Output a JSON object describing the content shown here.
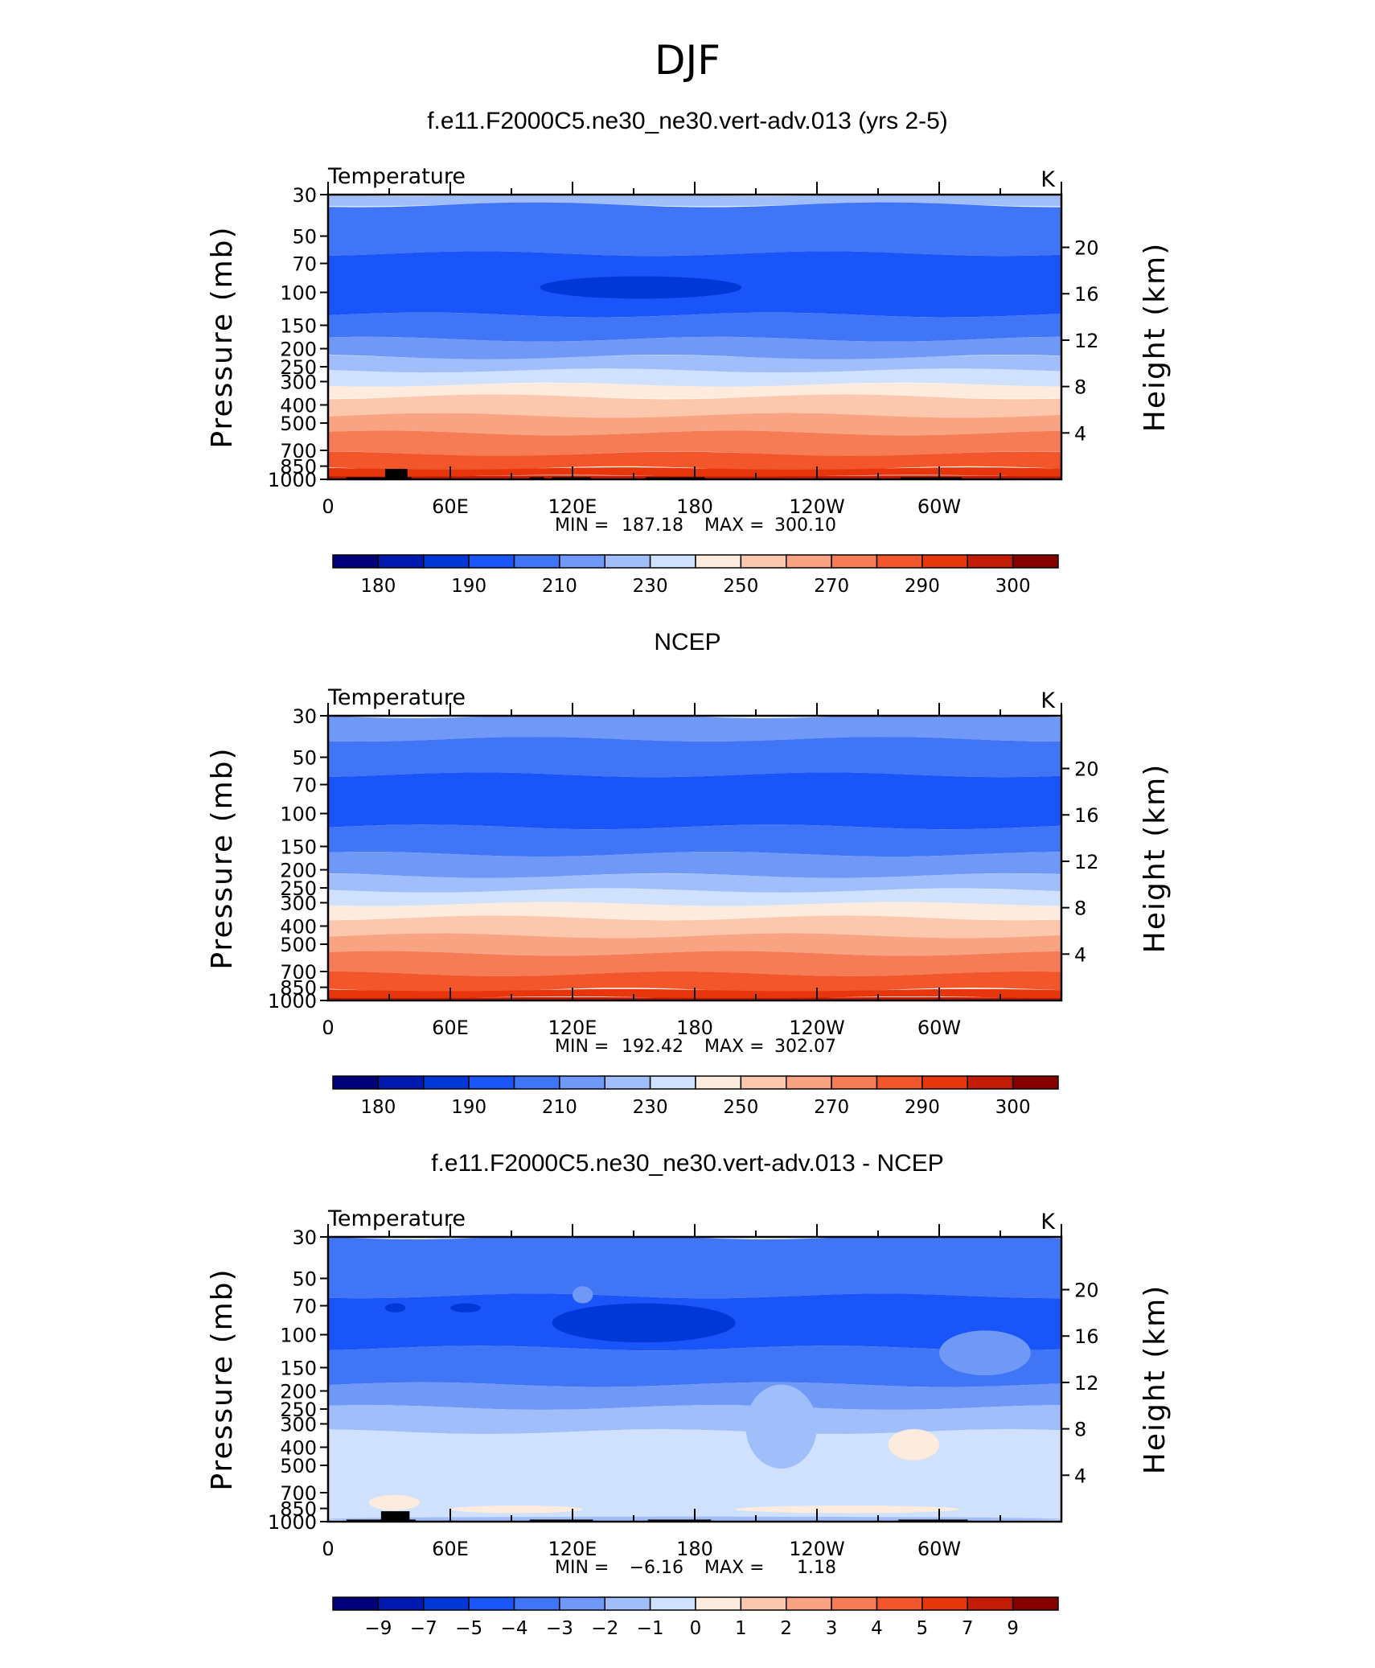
{
  "figure_title": "DJF",
  "colors": {
    "temperature_levels": [
      "#00007b",
      "#001ab0",
      "#0038d8",
      "#1a55fa",
      "#4076f5",
      "#6f98f7",
      "#a0befa",
      "#cfe1fc",
      "#fdecde",
      "#fbc8ad",
      "#f8a381",
      "#f57c55",
      "#f2562a",
      "#e8360c",
      "#c21c04",
      "#870000"
    ],
    "difference_levels": [
      "#00007b",
      "#001ab0",
      "#0038d8",
      "#1a55fa",
      "#4076f5",
      "#6f98f7",
      "#a0befa",
      "#cfe1fc",
      "#fdecde",
      "#fbc8ad",
      "#f8a381",
      "#f57c55",
      "#f2562a",
      "#e8360c",
      "#c21c04",
      "#870000"
    ]
  },
  "chart_data": [
    {
      "type": "heatmap",
      "title": "f.e11.F2000C5.ne30_ne30.vert-adv.013 (yrs 2-5)",
      "left_label": "Temperature",
      "right_label": "K",
      "ylabel": "Pressure (mb)",
      "y2label": "Height (km)",
      "pressure_ticks": [
        "30",
        "50",
        "70",
        "100",
        "150",
        "200",
        "250",
        "300",
        "400",
        "500",
        "700",
        "850",
        "1000"
      ],
      "height_ticks": [
        "20",
        "16",
        "12",
        "8",
        "4"
      ],
      "x_ticks": [
        "0",
        "60E",
        "120E",
        "180",
        "120W",
        "60W"
      ],
      "ylim": [
        1000,
        30
      ],
      "xlim": [
        0,
        360
      ],
      "min_label": "MIN =",
      "min_value": "187.18",
      "max_label": "MAX =",
      "max_value": "300.10",
      "colorbar_labels": [
        "180",
        "190",
        "210",
        "230",
        "250",
        "270",
        "290",
        "300"
      ],
      "bands": [
        {
          "top": 30,
          "bottom": 34,
          "color_index": 6
        },
        {
          "top": 34,
          "bottom": 62,
          "color_index": 4
        },
        {
          "top": 62,
          "bottom": 132,
          "color_index": 3
        },
        {
          "top": 132,
          "bottom": 178,
          "color_index": 4
        },
        {
          "top": 178,
          "bottom": 222,
          "color_index": 5
        },
        {
          "top": 222,
          "bottom": 262,
          "color_index": 6
        },
        {
          "top": 262,
          "bottom": 312,
          "color_index": 7
        },
        {
          "top": 312,
          "bottom": 362,
          "color_index": 8
        },
        {
          "top": 362,
          "bottom": 455,
          "color_index": 9
        },
        {
          "top": 455,
          "bottom": 565,
          "color_index": 10
        },
        {
          "top": 565,
          "bottom": 730,
          "color_index": 11
        },
        {
          "top": 730,
          "bottom": 875,
          "color_index": 12
        },
        {
          "top": 875,
          "bottom": 960,
          "color_index": 13
        },
        {
          "top": 960,
          "bottom": 1000,
          "color_index": 14
        }
      ],
      "blobs": [
        {
          "lon_start": 104,
          "lon_end": 203,
          "p_top": 82,
          "p_bottom": 108,
          "color_index": 2
        }
      ],
      "topography": [
        {
          "lon_start": 9,
          "lon_end": 41,
          "p_top": 975
        },
        {
          "lon_start": 28,
          "lon_end": 39,
          "p_top": 880
        },
        {
          "lon_start": 99,
          "lon_end": 106,
          "p_top": 975
        },
        {
          "lon_start": 110,
          "lon_end": 129,
          "p_top": 975
        },
        {
          "lon_start": 156,
          "lon_end": 185,
          "p_top": 975
        },
        {
          "lon_start": 281,
          "lon_end": 311,
          "p_top": 975
        }
      ]
    },
    {
      "type": "heatmap",
      "title": "NCEP",
      "left_label": "Temperature",
      "right_label": "K",
      "ylabel": "Pressure (mb)",
      "y2label": "Height (km)",
      "pressure_ticks": [
        "30",
        "50",
        "70",
        "100",
        "150",
        "200",
        "250",
        "300",
        "400",
        "500",
        "700",
        "850",
        "1000"
      ],
      "height_ticks": [
        "20",
        "16",
        "12",
        "8",
        "4"
      ],
      "x_ticks": [
        "0",
        "60E",
        "120E",
        "180",
        "120W",
        "60W"
      ],
      "ylim": [
        1000,
        30
      ],
      "xlim": [
        0,
        360
      ],
      "min_label": "MIN =",
      "min_value": "192.42",
      "max_label": "MAX =",
      "max_value": "302.07",
      "colorbar_labels": [
        "180",
        "190",
        "210",
        "230",
        "250",
        "270",
        "290",
        "300"
      ],
      "bands": [
        {
          "top": 30,
          "bottom": 40,
          "color_index": 5
        },
        {
          "top": 40,
          "bottom": 62,
          "color_index": 4
        },
        {
          "top": 62,
          "bottom": 118,
          "color_index": 3
        },
        {
          "top": 118,
          "bottom": 165,
          "color_index": 4
        },
        {
          "top": 165,
          "bottom": 215,
          "color_index": 5
        },
        {
          "top": 215,
          "bottom": 258,
          "color_index": 6
        },
        {
          "top": 258,
          "bottom": 305,
          "color_index": 7
        },
        {
          "top": 305,
          "bottom": 362,
          "color_index": 8
        },
        {
          "top": 362,
          "bottom": 450,
          "color_index": 9
        },
        {
          "top": 450,
          "bottom": 560,
          "color_index": 10
        },
        {
          "top": 560,
          "bottom": 720,
          "color_index": 11
        },
        {
          "top": 720,
          "bottom": 880,
          "color_index": 12
        },
        {
          "top": 880,
          "bottom": 965,
          "color_index": 13
        },
        {
          "top": 965,
          "bottom": 1000,
          "color_index": 14
        }
      ],
      "blobs": [],
      "topography": []
    },
    {
      "type": "heatmap",
      "title": "f.e11.F2000C5.ne30_ne30.vert-adv.013 - NCEP",
      "left_label": "Temperature",
      "right_label": "K",
      "ylabel": "Pressure (mb)",
      "y2label": "Height (km)",
      "pressure_ticks": [
        "30",
        "50",
        "70",
        "100",
        "150",
        "200",
        "250",
        "300",
        "400",
        "500",
        "700",
        "850",
        "1000"
      ],
      "height_ticks": [
        "20",
        "16",
        "12",
        "8",
        "4"
      ],
      "x_ticks": [
        "0",
        "60E",
        "120E",
        "180",
        "120W",
        "60W"
      ],
      "ylim": [
        1000,
        30
      ],
      "xlim": [
        0,
        360
      ],
      "min_label": "MIN =",
      "min_value": "−6.16",
      "max_label": "MAX =",
      "max_value": "1.18",
      "colorbar_labels": [
        "−9",
        "−7",
        "−5",
        "−4",
        "−3",
        "−2",
        "−1",
        "0",
        "1",
        "2",
        "3",
        "4",
        "5",
        "7",
        "9"
      ],
      "bands": [
        {
          "top": 30,
          "bottom": 62,
          "color_index": 4
        },
        {
          "top": 62,
          "bottom": 118,
          "color_index": 3
        },
        {
          "top": 118,
          "bottom": 185,
          "color_index": 4
        },
        {
          "top": 185,
          "bottom": 245,
          "color_index": 5
        },
        {
          "top": 245,
          "bottom": 330,
          "color_index": 6
        },
        {
          "top": 330,
          "bottom": 1000,
          "color_index": 7
        }
      ],
      "blobs": [
        {
          "lon_start": 110,
          "lon_end": 200,
          "p_top": 68,
          "p_bottom": 110,
          "color_index": 2
        },
        {
          "lon_start": 28,
          "lon_end": 38,
          "p_top": 68,
          "p_bottom": 76,
          "color_index": 2
        },
        {
          "lon_start": 60,
          "lon_end": 75,
          "p_top": 68,
          "p_bottom": 76,
          "color_index": 2
        },
        {
          "lon_start": 300,
          "lon_end": 345,
          "p_top": 95,
          "p_bottom": 165,
          "color_index": 5
        },
        {
          "lon_start": 120,
          "lon_end": 130,
          "p_top": 55,
          "p_bottom": 68,
          "color_index": 5
        },
        {
          "lon_start": 205,
          "lon_end": 240,
          "p_top": 185,
          "p_bottom": 520,
          "color_index": 6
        },
        {
          "lon_start": 275,
          "lon_end": 300,
          "p_top": 320,
          "p_bottom": 470,
          "color_index": 8
        },
        {
          "lon_start": 20,
          "lon_end": 45,
          "p_top": 720,
          "p_bottom": 870,
          "color_index": 8
        },
        {
          "lon_start": 60,
          "lon_end": 125,
          "p_top": 820,
          "p_bottom": 900,
          "color_index": 8
        },
        {
          "lon_start": 200,
          "lon_end": 310,
          "p_top": 820,
          "p_bottom": 900,
          "color_index": 8
        },
        {
          "lon_start": 0,
          "lon_end": 360,
          "p_top": 940,
          "p_bottom": 1000,
          "color_index": 6
        }
      ],
      "topography": [
        {
          "lon_start": 9,
          "lon_end": 43,
          "p_top": 975
        },
        {
          "lon_start": 26,
          "lon_end": 40,
          "p_top": 880
        },
        {
          "lon_start": 99,
          "lon_end": 130,
          "p_top": 975
        },
        {
          "lon_start": 157,
          "lon_end": 188,
          "p_top": 975
        },
        {
          "lon_start": 280,
          "lon_end": 314,
          "p_top": 975
        }
      ]
    }
  ]
}
